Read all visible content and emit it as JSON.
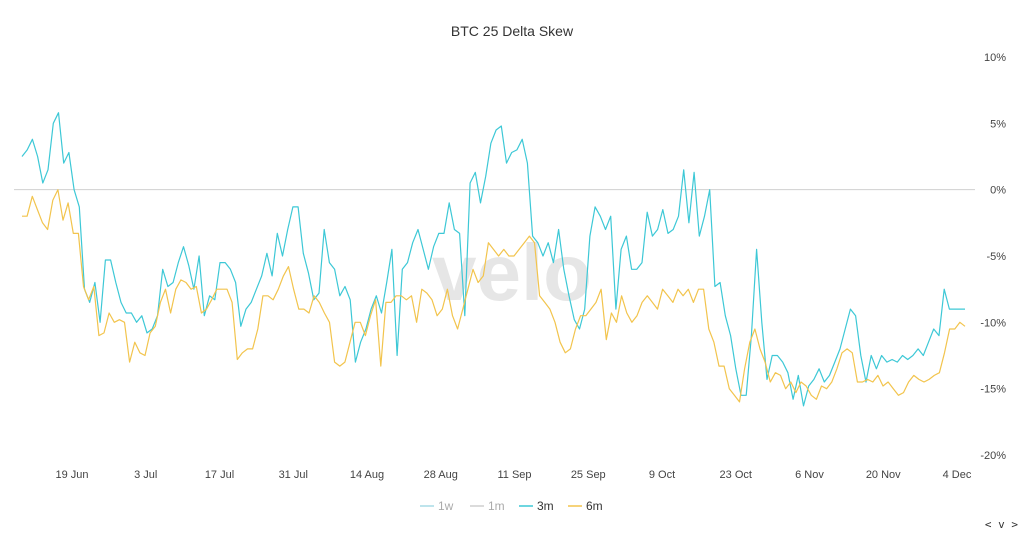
{
  "chart_data": {
    "type": "line",
    "title": "BTC 25 Delta Skew",
    "watermark": "velo",
    "x_ticks": [
      "19 Jun",
      "3 Jul",
      "17 Jul",
      "31 Jul",
      "14 Aug",
      "28 Aug",
      "11 Sep",
      "25 Sep",
      "9 Oct",
      "23 Oct",
      "6 Nov",
      "20 Nov",
      "4 Dec"
    ],
    "y_ticks": [
      "10%",
      "5%",
      "0%",
      "-5%",
      "-10%",
      "-15%",
      "-20%"
    ],
    "ylim": [
      -20,
      10
    ],
    "zero_line": true,
    "legend_position": "bottom-center",
    "series": [
      {
        "name": "1w",
        "color": "#a8dbe6",
        "visible": false,
        "values": []
      },
      {
        "name": "1m",
        "color": "#cfcfcf",
        "visible": false,
        "values": []
      },
      {
        "name": "3m",
        "color": "#3dc8d6",
        "visible": true,
        "values": [
          2.5,
          3.0,
          3.8,
          2.5,
          0.5,
          1.5,
          5.0,
          5.8,
          2.0,
          2.8,
          0.0,
          -1.3,
          -7.5,
          -8.5,
          -7.0,
          -10.0,
          -5.3,
          -5.3,
          -7.0,
          -8.5,
          -9.3,
          -9.3,
          -10.0,
          -9.5,
          -10.8,
          -10.5,
          -9.5,
          -6.0,
          -7.3,
          -7.0,
          -5.5,
          -4.3,
          -5.7,
          -7.5,
          -5.0,
          -9.5,
          -8.0,
          -8.3,
          -5.5,
          -5.5,
          -6.0,
          -7.0,
          -10.3,
          -9.0,
          -8.5,
          -7.5,
          -6.5,
          -4.8,
          -6.5,
          -3.3,
          -5.0,
          -3.0,
          -1.3,
          -1.3,
          -4.8,
          -6.3,
          -8.3,
          -7.8,
          -3.0,
          -5.5,
          -6.0,
          -8.0,
          -7.3,
          -8.3,
          -13.0,
          -11.5,
          -10.5,
          -9.0,
          -8.0,
          -9.3,
          -7.0,
          -4.5,
          -12.5,
          -6.0,
          -5.5,
          -4.0,
          -3.0,
          -4.5,
          -6.0,
          -4.3,
          -3.3,
          -3.3,
          -1.0,
          -3.0,
          -3.3,
          -9.5,
          0.5,
          1.3,
          -1.0,
          1.0,
          3.5,
          4.5,
          4.8,
          2.0,
          2.8,
          3.0,
          3.8,
          2.0,
          -3.5,
          -4.0,
          -5.0,
          -4.0,
          -5.5,
          -3.0,
          -6.0,
          -8.0,
          -9.8,
          -10.5,
          -9.0,
          -3.5,
          -1.3,
          -2.0,
          -3.0,
          -2.0,
          -9.0,
          -4.5,
          -3.5,
          -6.0,
          -6.0,
          -5.5,
          -1.7,
          -3.5,
          -3.0,
          -1.5,
          -3.3,
          -3.0,
          -2.0,
          1.5,
          -2.5,
          1.3,
          -3.5,
          -2.0,
          0.0,
          -7.3,
          -7.0,
          -9.5,
          -11.0,
          -13.5,
          -15.5,
          -15.5,
          -11.0,
          -4.5,
          -10.0,
          -14.3,
          -12.5,
          -12.5,
          -13.0,
          -13.8,
          -15.8,
          -14.0,
          -16.3,
          -14.8,
          -14.3,
          -13.5,
          -14.5,
          -14.0,
          -13.0,
          -12.0,
          -10.5,
          -9.0,
          -9.5,
          -12.5,
          -14.5,
          -12.5,
          -13.5,
          -12.5,
          -13.0,
          -12.8,
          -13.0,
          -12.5,
          -12.8,
          -12.5,
          -12.0,
          -12.5,
          -11.5,
          -10.5,
          -11.0,
          -7.5,
          -9.0,
          -9.0,
          -9.0,
          -9.0
        ]
      },
      {
        "name": "6m",
        "color": "#f2c44d",
        "visible": true,
        "values": [
          -2.0,
          -2.0,
          -0.5,
          -1.5,
          -2.5,
          -3.0,
          -0.8,
          0.0,
          -2.3,
          -1.0,
          -3.3,
          -3.3,
          -7.3,
          -8.3,
          -7.3,
          -11.0,
          -10.8,
          -9.3,
          -10.0,
          -9.8,
          -10.0,
          -13.0,
          -11.5,
          -12.3,
          -12.5,
          -10.8,
          -10.3,
          -8.5,
          -7.5,
          -9.3,
          -7.5,
          -6.8,
          -7.0,
          -7.5,
          -7.3,
          -9.3,
          -9.0,
          -8.3,
          -7.5,
          -7.5,
          -7.5,
          -8.5,
          -12.8,
          -12.3,
          -12.0,
          -12.0,
          -10.5,
          -8.0,
          -8.0,
          -8.3,
          -7.5,
          -6.5,
          -5.8,
          -7.5,
          -9.0,
          -9.0,
          -9.3,
          -8.0,
          -8.5,
          -9.3,
          -10.0,
          -13.0,
          -13.3,
          -13.0,
          -11.5,
          -10.0,
          -10.0,
          -11.0,
          -9.5,
          -8.3,
          -13.3,
          -8.5,
          -8.5,
          -8.0,
          -8.0,
          -8.3,
          -8.0,
          -10.0,
          -7.5,
          -7.8,
          -8.3,
          -9.5,
          -9.0,
          -7.5,
          -9.5,
          -10.5,
          -9.0,
          -7.5,
          -6.0,
          -7.0,
          -6.5,
          -4.0,
          -4.5,
          -5.0,
          -4.5,
          -5.0,
          -5.0,
          -4.5,
          -4.0,
          -3.5,
          -4.0,
          -8.0,
          -8.5,
          -9.0,
          -10.0,
          -11.5,
          -12.3,
          -12.0,
          -10.5,
          -9.5,
          -9.5,
          -9.0,
          -8.5,
          -7.5,
          -11.3,
          -9.3,
          -10.0,
          -8.0,
          -9.3,
          -10.0,
          -9.5,
          -8.5,
          -8.0,
          -8.5,
          -9.0,
          -7.5,
          -8.0,
          -8.5,
          -7.5,
          -8.0,
          -7.5,
          -8.5,
          -7.5,
          -7.5,
          -10.5,
          -11.5,
          -13.3,
          -13.3,
          -15.0,
          -15.5,
          -16.0,
          -13.5,
          -11.5,
          -10.5,
          -12.0,
          -13.0,
          -14.5,
          -13.8,
          -14.0,
          -15.0,
          -14.5,
          -15.3,
          -14.5,
          -14.8,
          -15.5,
          -15.8,
          -14.8,
          -15.0,
          -14.5,
          -13.5,
          -12.3,
          -12.0,
          -12.3,
          -14.5,
          -14.5,
          -14.3,
          -14.5,
          -14.0,
          -14.8,
          -14.5,
          -15.0,
          -15.5,
          -15.3,
          -14.5,
          -14.0,
          -14.3,
          -14.5,
          -14.3,
          -14.0,
          -13.8,
          -12.3,
          -10.5,
          -10.5,
          -10.0,
          -10.3
        ]
      }
    ]
  },
  "nav": {
    "arrows": "< v >"
  }
}
